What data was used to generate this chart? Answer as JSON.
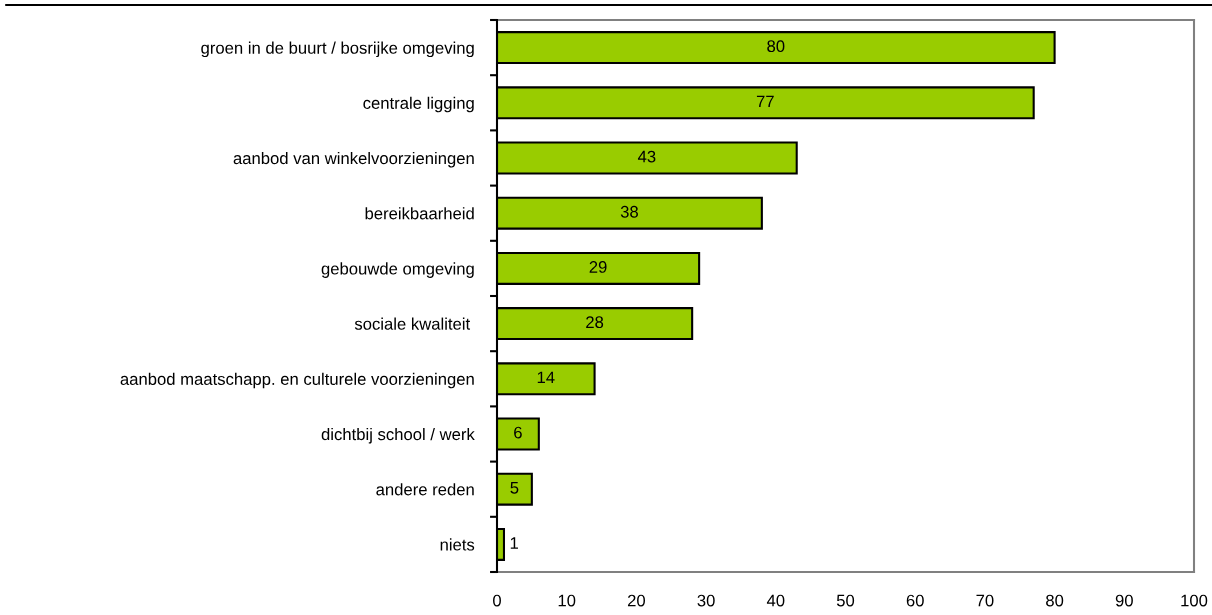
{
  "chart_data": {
    "type": "bar",
    "orientation": "horizontal",
    "categories": [
      "groen in de buurt / bosrijke omgeving",
      "centrale ligging",
      "aanbod van winkelvoorzieningen",
      "bereikbaarheid",
      "gebouwde omgeving",
      "sociale kwaliteit ",
      "aanbod maatschapp. en culturele voorzieningen",
      "dichtbij school / werk",
      "andere reden",
      "niets"
    ],
    "values": [
      80,
      77,
      43,
      38,
      29,
      28,
      14,
      6,
      5,
      1
    ],
    "color": "#99cc00",
    "xlim": [
      0,
      100
    ],
    "xticks": [
      0,
      10,
      20,
      30,
      40,
      50,
      60,
      70,
      80,
      90,
      100
    ],
    "data_labels": true,
    "grid": false
  }
}
